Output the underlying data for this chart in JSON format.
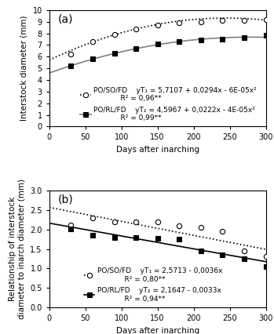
{
  "panel_a": {
    "title": "(a)",
    "ylabel": "Interstock diameter (mm)",
    "xlabel": "Days after inarching",
    "ylim": [
      0,
      10
    ],
    "xlim": [
      0,
      300
    ],
    "yticks": [
      0,
      1,
      2,
      3,
      4,
      5,
      6,
      7,
      8,
      9,
      10
    ],
    "xticks": [
      0,
      50,
      100,
      150,
      200,
      250,
      300
    ],
    "series1": {
      "label": "PO/SO/FD",
      "x": [
        30,
        60,
        90,
        120,
        150,
        180,
        210,
        240,
        270,
        300
      ],
      "y": [
        6.2,
        7.3,
        7.9,
        8.4,
        8.7,
        8.9,
        9.0,
        9.1,
        9.1,
        9.2
      ],
      "marker": "o",
      "marker_facecolor": "white",
      "marker_edgecolor": "black"
    },
    "series2": {
      "label": "PO/RL/FD",
      "x": [
        30,
        60,
        90,
        120,
        150,
        180,
        210,
        240,
        270,
        300
      ],
      "y": [
        5.2,
        5.8,
        6.3,
        6.7,
        7.1,
        7.3,
        7.4,
        7.5,
        7.6,
        7.8
      ],
      "marker": "s",
      "marker_facecolor": "black",
      "marker_edgecolor": "black"
    },
    "eq1_a": 5.7107,
    "eq1_b": 0.0294,
    "eq1_c": -6e-05,
    "eq2_a": 4.5967,
    "eq2_b": 0.0222,
    "eq2_c": -4e-05,
    "eq1_text": "yT₁ = 5,7107 + 0,0294x - 6E-05x²",
    "r1_text": "R² = 0,96**",
    "eq2_text": "yT₂ = 4,5967 + 0,0222x - 4E-05x²",
    "r2_text": "R² = 0,99**",
    "label1": "PO/SO/FD",
    "label2": "PO/RL/FD"
  },
  "panel_b": {
    "title": "(b)",
    "ylabel": "Relationship of interstock\ndiameter to inarch diameter (mm)",
    "xlabel": "Days after inarching",
    "ylim": [
      0,
      3
    ],
    "xlim": [
      0,
      300
    ],
    "yticks": [
      0,
      0.5,
      1.0,
      1.5,
      2.0,
      2.5,
      3.0
    ],
    "xticks": [
      0,
      50,
      100,
      150,
      200,
      250,
      300
    ],
    "series1": {
      "label": "PO/SO/FD",
      "x": [
        30,
        60,
        90,
        120,
        150,
        180,
        210,
        240,
        270,
        300
      ],
      "y": [
        2.12,
        2.3,
        2.2,
        2.2,
        2.2,
        2.1,
        2.05,
        1.95,
        1.45,
        1.3
      ],
      "marker": "o",
      "marker_facecolor": "white",
      "marker_edgecolor": "black"
    },
    "series2": {
      "label": "PO/RL/FD",
      "x": [
        30,
        60,
        90,
        120,
        150,
        180,
        210,
        240,
        270,
        300
      ],
      "y": [
        2.02,
        1.85,
        1.8,
        1.8,
        1.78,
        1.75,
        1.45,
        1.35,
        1.25,
        1.05
      ],
      "marker": "s",
      "marker_facecolor": "black",
      "marker_edgecolor": "black"
    },
    "eq1_a": 2.5713,
    "eq1_b": -0.0036,
    "eq2_a": 2.1647,
    "eq2_b": -0.0033,
    "eq1_text": "yT₁ = 2,5713 - 0,0036x",
    "r1_text": "R² = 0,80**",
    "eq2_text": "yT₂ = 2,1647 - 0,0033x",
    "r2_text": "R² = 0,94**",
    "label1": "PO/SO/FD",
    "label2": "PO/RL/FD"
  },
  "legend_fontsize": 6.5,
  "label_fontsize": 7.5,
  "tick_fontsize": 7,
  "title_fontsize": 10
}
